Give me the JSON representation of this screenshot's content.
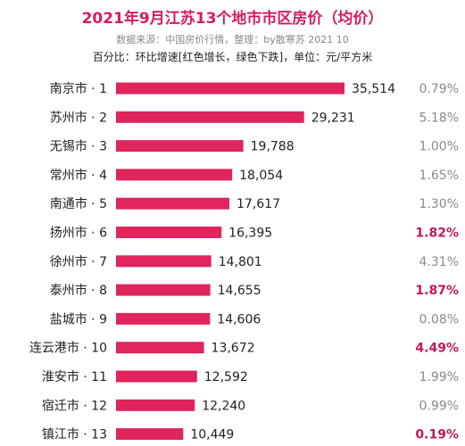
{
  "chart_data": {
    "type": "bar",
    "title": "2021年9月江苏13个地市市区房价（均价）",
    "source": "数据来源：中国房价行情，整理：by散寒苏 2021 10",
    "legend_note": "百分比：环比增速[红色增长，绿色下跌]，单位：元/平方米",
    "categories": [
      "南京市 · 1",
      "苏州市 · 2",
      "无锡市 · 3",
      "常州市 · 4",
      "南通市 · 5",
      "扬州市 · 6",
      "徐州市 · 7",
      "泰州市 · 8",
      "盐城市 · 9",
      "连云港市 · 10",
      "淮安市 · 11",
      "宿迁市 · 12",
      "镇江市 · 13"
    ],
    "values": [
      35514,
      29231,
      19788,
      18054,
      17617,
      16395,
      14801,
      14655,
      14606,
      13672,
      12592,
      12240,
      10449
    ],
    "value_labels": [
      "35,514",
      "29,231",
      "19,788",
      "18,054",
      "17,617",
      "16,395",
      "14,801",
      "14,655",
      "14,606",
      "13,672",
      "12,592",
      "12,240",
      "10,449"
    ],
    "percent_labels": [
      "0.79%",
      "5.18%",
      "1.00%",
      "1.65%",
      "1.30%",
      "1.82%",
      "4.31%",
      "1.87%",
      "0.08%",
      "4.49%",
      "1.99%",
      "0.99%",
      "0.19%"
    ],
    "percent_highlight": [
      false,
      false,
      false,
      false,
      false,
      true,
      false,
      true,
      false,
      true,
      false,
      false,
      true
    ],
    "colors": {
      "bar": "#e0245e",
      "title": "#d81b60",
      "highlight": "#c2185b",
      "normal_pct": "#8a8a8a"
    }
  }
}
